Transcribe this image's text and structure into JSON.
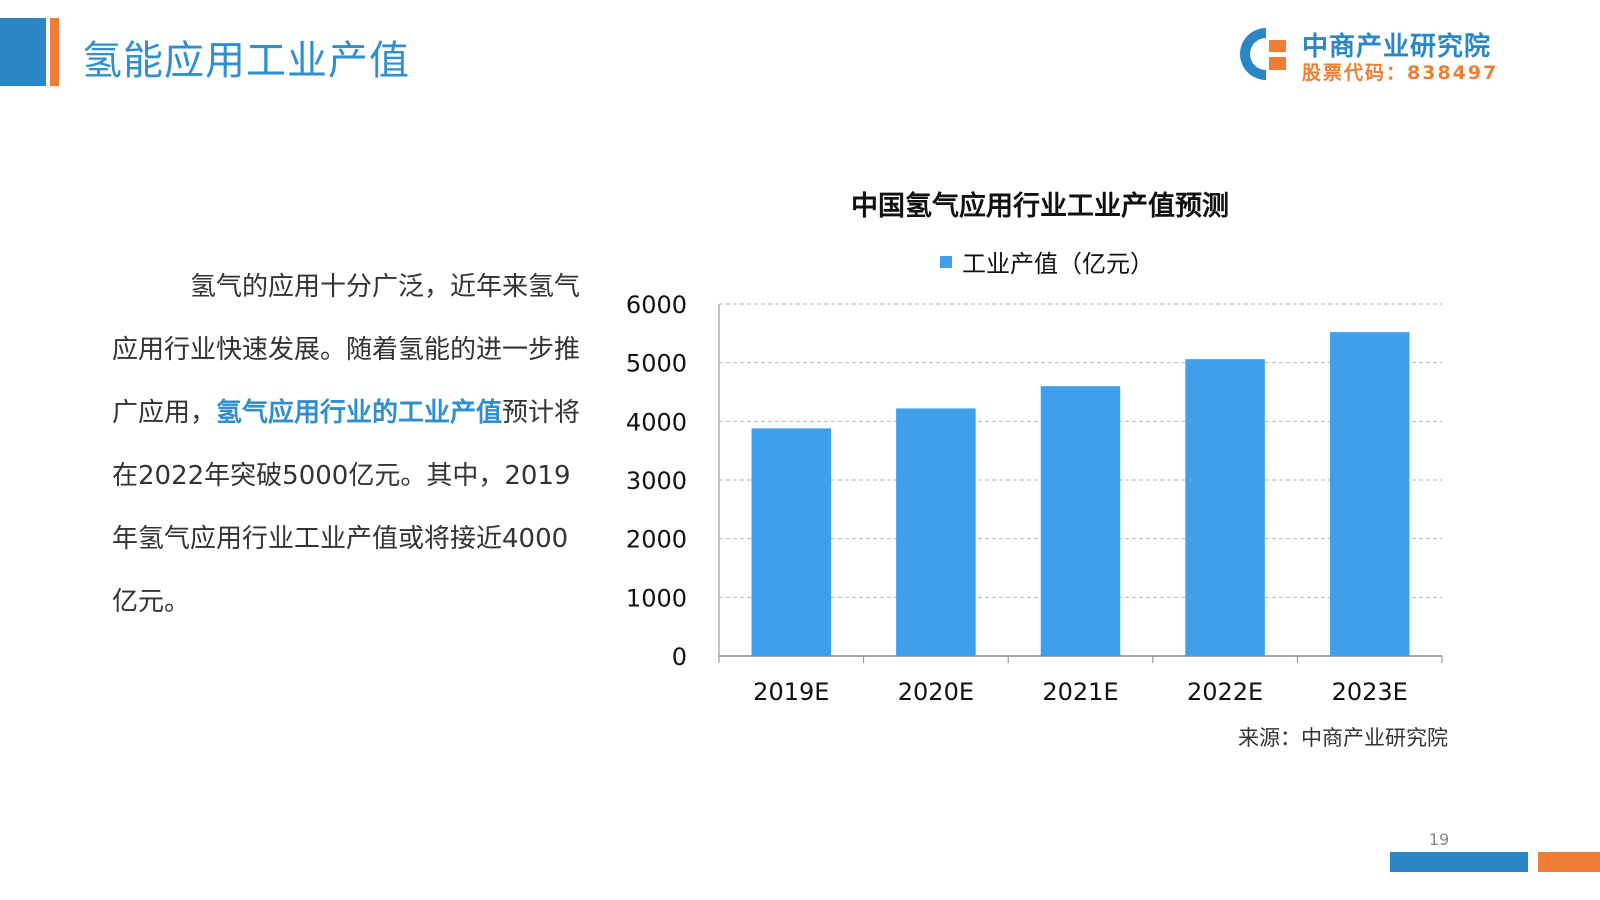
{
  "header": {
    "title": "氢能应用工业产值",
    "logo_name": "中商产业研究院",
    "logo_code": "股票代码：838497"
  },
  "body": {
    "segments": [
      {
        "text": "氢气的应用十分广泛，近年来氢气应用行业快速发展。随着氢能的进一步推广应用，",
        "highlight": false
      },
      {
        "text": "氢气应用行业的工业产值",
        "highlight": true
      },
      {
        "text": "预计将在2022年突破5000亿元。其中，2019年氢气应用行业工业产值或将接近4000亿元。",
        "highlight": false
      }
    ]
  },
  "chart_data": {
    "type": "bar",
    "title": "中国氢气应用行业工业产值预测",
    "categories": [
      "2019E",
      "2020E",
      "2021E",
      "2022E",
      "2023E"
    ],
    "series": [
      {
        "name": "工业产值（亿元）",
        "values": [
          3880,
          4220,
          4600,
          5060,
          5520
        ],
        "color": "#3f9fea"
      }
    ],
    "ylim": [
      0,
      6000
    ],
    "yticks": [
      0,
      1000,
      2000,
      3000,
      4000,
      5000,
      6000
    ],
    "grid": true,
    "legend": "top"
  },
  "footer": {
    "source": "来源：中商产业研究院",
    "page_number": "19"
  }
}
